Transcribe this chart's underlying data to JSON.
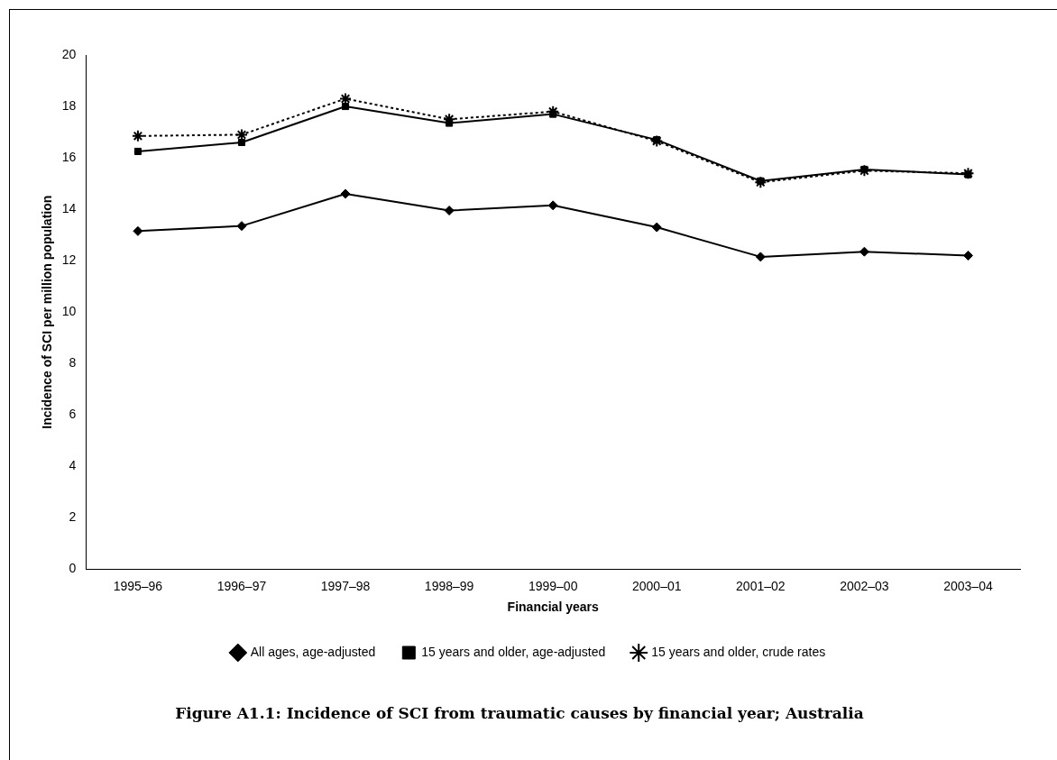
{
  "chart_data": {
    "type": "line",
    "title": "Figure A1.1:  Incidence of SCI from traumatic causes by financial year; Australia",
    "xlabel": "Financial years",
    "ylabel": "Incidence of SCI per million population",
    "categories": [
      "1995–96",
      "1996–97",
      "1997–98",
      "1998–99",
      "1999–00",
      "2000–01",
      "2001–02",
      "2002–03",
      "2003–04"
    ],
    "series": [
      {
        "name": "All ages, age-adjusted",
        "color": "#000000",
        "marker": "diamond",
        "line_style": "solid",
        "values": [
          13.15,
          13.35,
          14.6,
          13.95,
          14.15,
          13.3,
          12.15,
          12.35,
          12.2
        ]
      },
      {
        "name": "15 years and older, age-adjusted",
        "color": "#000000",
        "marker": "square",
        "line_style": "solid",
        "values": [
          16.25,
          16.6,
          18.0,
          17.35,
          17.7,
          16.7,
          15.1,
          15.55,
          15.35
        ]
      },
      {
        "name": "15 years and older, crude rates",
        "color": "#000000",
        "marker": "cross",
        "line_style": "dotted",
        "values": [
          16.85,
          16.9,
          18.3,
          17.5,
          17.8,
          16.65,
          15.05,
          15.5,
          15.4
        ]
      }
    ],
    "ylim": [
      0,
      20
    ],
    "yticks": [
      0,
      2,
      4,
      6,
      8,
      10,
      12,
      14,
      16,
      18,
      20
    ],
    "grid": false,
    "legend": "bottom"
  }
}
